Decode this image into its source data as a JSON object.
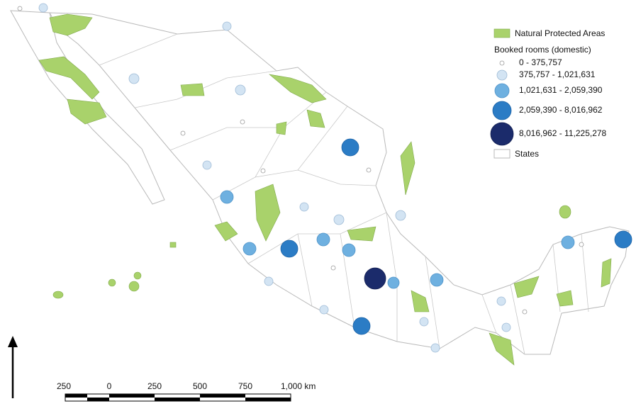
{
  "legend": {
    "protected_areas": "Natural Protected Areas",
    "booked_title": "Booked rooms (domestic)",
    "classes": [
      "0 - 375,757",
      "375,757 - 1,021,631",
      "1,021,631 - 2,059,390",
      "2,059,390 - 8,016,962",
      "8,016,962 - 11,225,278"
    ],
    "states": "States"
  },
  "scale_bar": {
    "labels": [
      "250",
      "0",
      "250",
      "500",
      "750",
      "1,000 km"
    ]
  }
}
